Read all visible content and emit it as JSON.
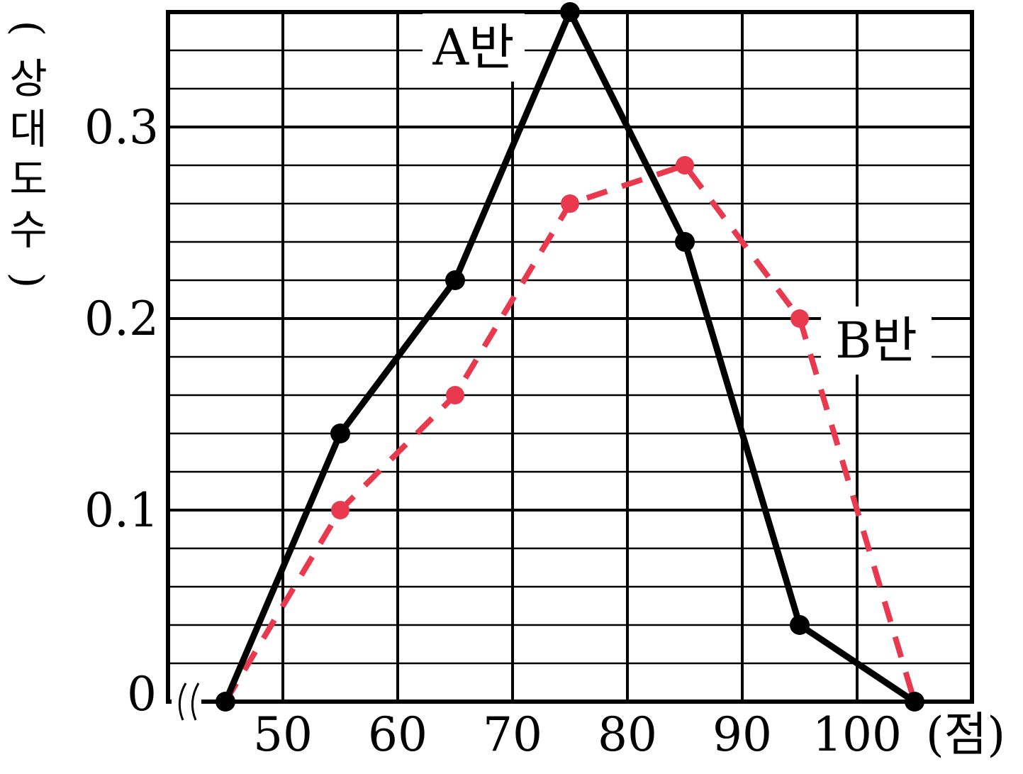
{
  "chart_data": {
    "type": "line",
    "ylabel": "(상대도수)",
    "xlabel": "(점)",
    "origin_label": "0",
    "x": [
      45,
      55,
      65,
      75,
      85,
      95,
      105
    ],
    "xlim": [
      40,
      110
    ],
    "ylim": [
      0,
      0.36
    ],
    "x_ticks": [
      50,
      60,
      70,
      80,
      90,
      100
    ],
    "x_tick_labels": [
      "50",
      "60",
      "70",
      "80",
      "90",
      "100"
    ],
    "y_ticks": [
      0.1,
      0.2,
      0.3
    ],
    "y_tick_labels": [
      "0.1",
      "0.2",
      "0.3"
    ],
    "minor_y_step": 0.02,
    "grid": true,
    "axis_break": true,
    "series": [
      {
        "name": "A반",
        "values": [
          0,
          0.14,
          0.22,
          0.36,
          0.24,
          0.04,
          0
        ],
        "color": "#000000",
        "style": "solid"
      },
      {
        "name": "B반",
        "values": [
          0,
          0.1,
          0.16,
          0.26,
          0.28,
          0.2,
          0
        ],
        "color": "#e8394f",
        "style": "dashed"
      }
    ]
  }
}
